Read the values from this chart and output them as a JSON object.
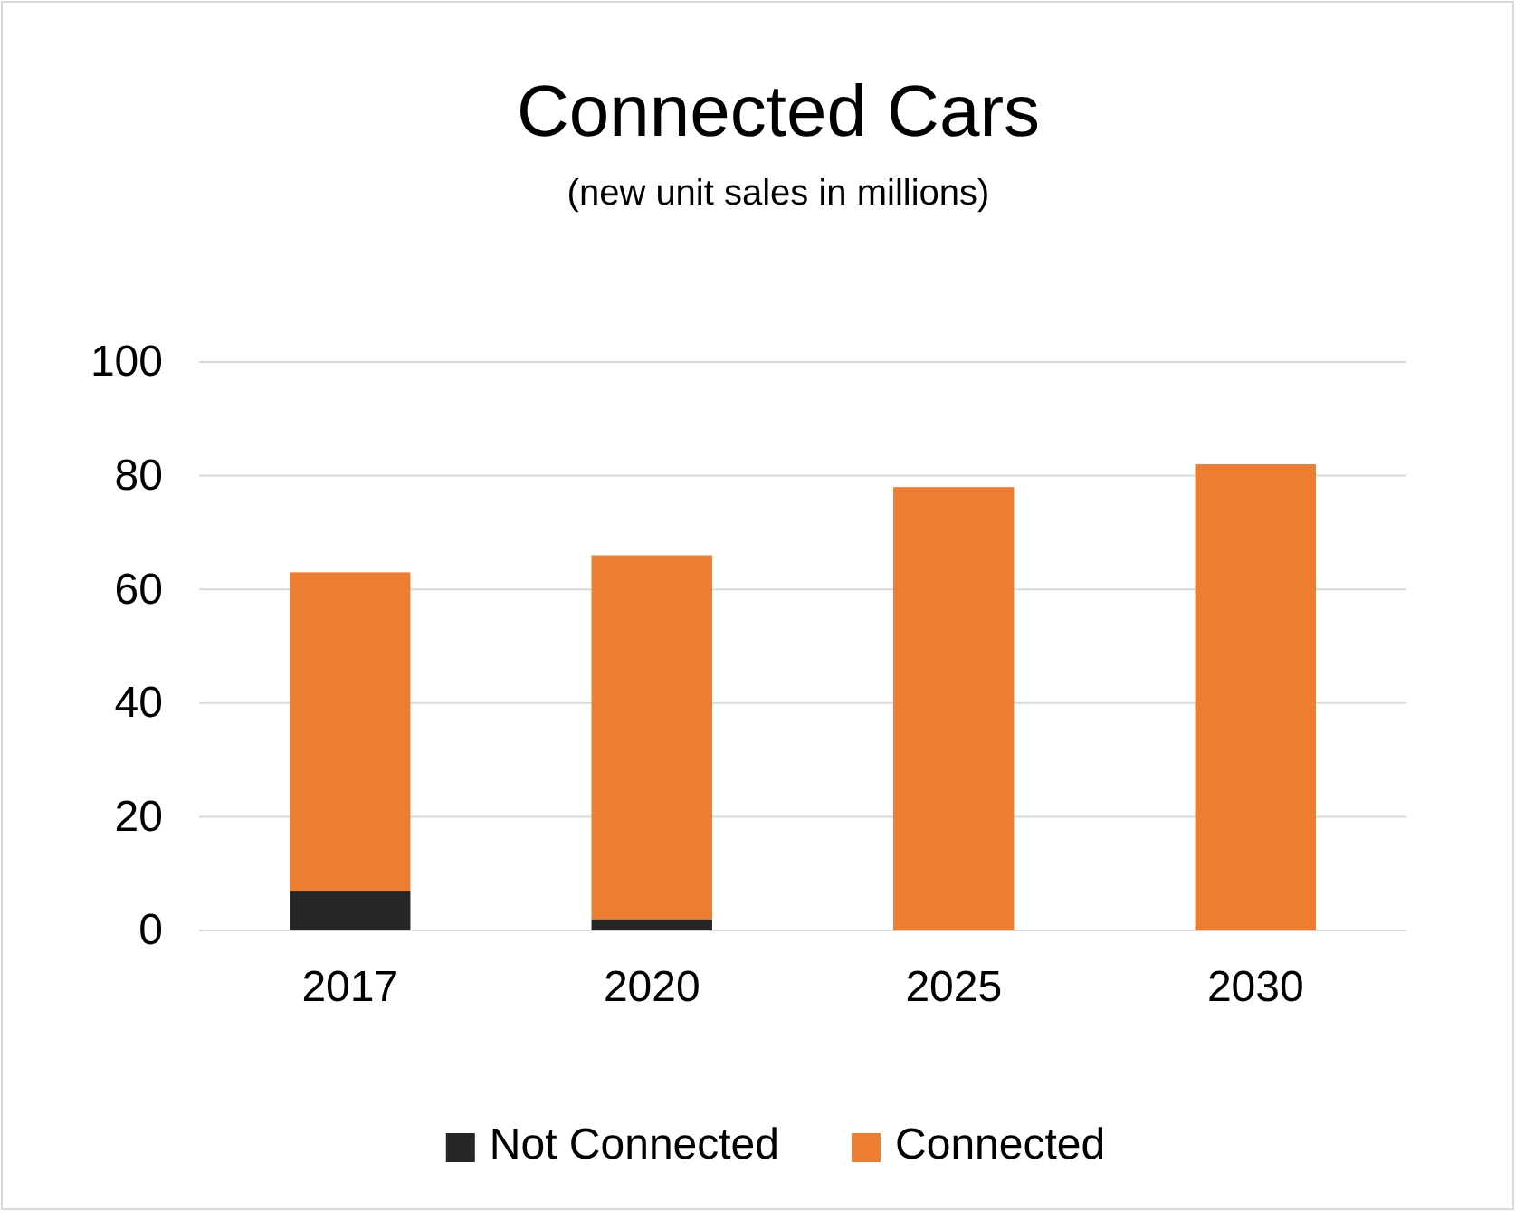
{
  "chart_data": {
    "type": "bar",
    "title": "Connected Cars",
    "subtitle": "(new unit sales in millions)",
    "categories": [
      "2017",
      "2020",
      "2025",
      "2030"
    ],
    "series": [
      {
        "name": "Not Connected",
        "color": "#262626",
        "values": [
          7,
          2,
          0,
          0
        ]
      },
      {
        "name": "Connected",
        "color": "#ed7d31",
        "values": [
          56,
          64,
          78,
          82
        ]
      }
    ],
    "stacked": true,
    "ylim": [
      0,
      100
    ],
    "yticks": [
      0,
      20,
      40,
      60,
      80,
      100
    ],
    "grid": "y",
    "legend": "bottom"
  }
}
